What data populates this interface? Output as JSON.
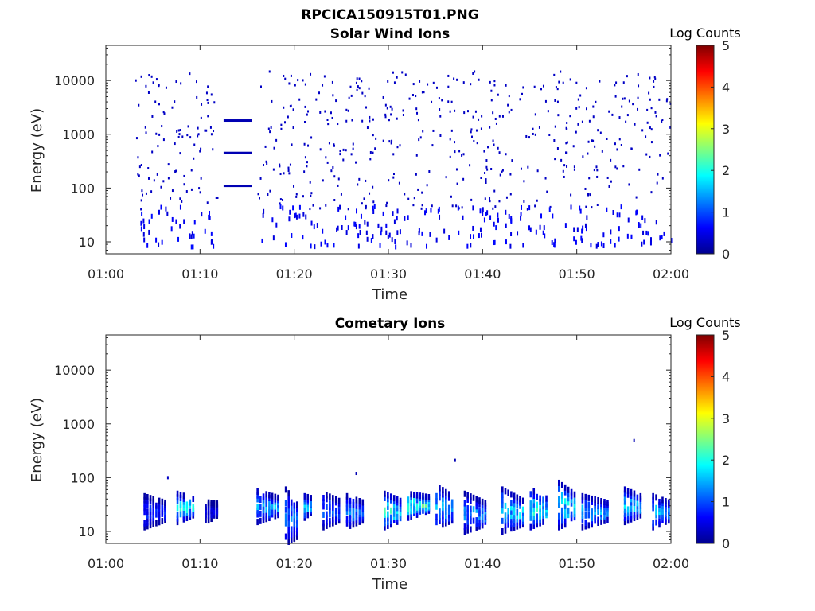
{
  "figure_title": "RPCICA150915T01.PNG",
  "chart_data": [
    {
      "type": "heatmap",
      "title": "Solar Wind Ions",
      "xlabel": "Time",
      "ylabel": "Energy (eV)",
      "x_ticks": [
        "01:00",
        "01:10",
        "01:20",
        "01:30",
        "01:40",
        "01:50",
        "02:00"
      ],
      "x_range": [
        "01:00",
        "02:00"
      ],
      "y_scale": "log",
      "y_ticks": [
        "10",
        "100",
        "1000",
        "10000"
      ],
      "ylim": [
        6,
        45000
      ],
      "colorbar": {
        "label": "Log Counts",
        "min": 0,
        "max": 5,
        "ticks": [
          "0",
          "1",
          "2",
          "3",
          "4",
          "5"
        ],
        "colormap": "jet"
      },
      "features": [
        {
          "kind": "scatter-noise",
          "time": [
            "01:03",
            "02:00"
          ],
          "energy_eV": [
            40,
            15000
          ],
          "log_counts": 0.3
        },
        {
          "kind": "band",
          "time": [
            "01:12.5",
            "01:15.5"
          ],
          "energy_eV": 1800,
          "log_counts": 0.2
        },
        {
          "kind": "band",
          "time": [
            "01:12.5",
            "01:15.5"
          ],
          "energy_eV": 450,
          "log_counts": 0.2
        },
        {
          "kind": "band",
          "time": [
            "01:12.5",
            "01:15.5"
          ],
          "energy_eV": 110,
          "log_counts": 0.2
        },
        {
          "kind": "low-energy-bursts",
          "energy_eV": [
            8,
            45
          ],
          "log_counts": 0.4
        }
      ]
    },
    {
      "type": "heatmap",
      "title": "Cometary Ions",
      "xlabel": "Time",
      "ylabel": "Energy (eV)",
      "x_ticks": [
        "01:00",
        "01:10",
        "01:20",
        "01:30",
        "01:40",
        "01:50",
        "02:00"
      ],
      "x_range": [
        "01:00",
        "02:00"
      ],
      "y_scale": "log",
      "y_ticks": [
        "10",
        "100",
        "1000",
        "10000"
      ],
      "ylim": [
        6,
        45000
      ],
      "colorbar": {
        "label": "Log Counts",
        "min": 0,
        "max": 5,
        "ticks": [
          "0",
          "1",
          "2",
          "3",
          "4",
          "5"
        ],
        "colormap": "jet"
      },
      "bursts": [
        {
          "start": "01:04.0",
          "end": "01:06.5",
          "energy_eV": [
            12,
            45
          ],
          "peak_log_counts": 1.0
        },
        {
          "start": "01:07.5",
          "end": "01:09.5",
          "energy_eV": [
            15,
            50
          ],
          "peak_log_counts": 2.2
        },
        {
          "start": "01:10.5",
          "end": "01:12.0",
          "energy_eV": [
            15,
            35
          ],
          "peak_log_counts": 0.6
        },
        {
          "start": "01:16.0",
          "end": "01:18.5",
          "energy_eV": [
            15,
            55
          ],
          "peak_log_counts": 1.8
        },
        {
          "start": "01:19.0",
          "end": "01:20.5",
          "energy_eV": [
            6,
            60
          ],
          "peak_log_counts": 1.4
        },
        {
          "start": "01:21.0",
          "end": "01:22.0",
          "energy_eV": [
            18,
            45
          ],
          "peak_log_counts": 2.0
        },
        {
          "start": "01:23.0",
          "end": "01:25.0",
          "energy_eV": [
            12,
            50
          ],
          "peak_log_counts": 1.2
        },
        {
          "start": "01:25.5",
          "end": "01:27.5",
          "energy_eV": [
            12,
            45
          ],
          "peak_log_counts": 1.5
        },
        {
          "start": "01:29.5",
          "end": "01:31.5",
          "energy_eV": [
            12,
            50
          ],
          "peak_log_counts": 2.3
        },
        {
          "start": "01:32.0",
          "end": "01:34.5",
          "energy_eV": [
            18,
            50
          ],
          "peak_log_counts": 2.6
        },
        {
          "start": "01:35.0",
          "end": "01:37.0",
          "energy_eV": [
            12,
            70
          ],
          "peak_log_counts": 1.8
        },
        {
          "start": "01:38.0",
          "end": "01:40.5",
          "energy_eV": [
            10,
            50
          ],
          "peak_log_counts": 1.6
        },
        {
          "start": "01:42.0",
          "end": "01:44.5",
          "energy_eV": [
            10,
            60
          ],
          "peak_log_counts": 2.0
        },
        {
          "start": "01:45.0",
          "end": "01:47.0",
          "energy_eV": [
            12,
            60
          ],
          "peak_log_counts": 2.3
        },
        {
          "start": "01:48.0",
          "end": "01:50.0",
          "energy_eV": [
            12,
            80
          ],
          "peak_log_counts": 2.1
        },
        {
          "start": "01:50.5",
          "end": "01:53.5",
          "energy_eV": [
            12,
            45
          ],
          "peak_log_counts": 1.8
        },
        {
          "start": "01:55.0",
          "end": "01:57.0",
          "energy_eV": [
            15,
            60
          ],
          "peak_log_counts": 2.0
        },
        {
          "start": "01:58.0",
          "end": "02:00.0",
          "energy_eV": [
            12,
            45
          ],
          "peak_log_counts": 1.8
        }
      ],
      "isolated_points": [
        {
          "time": "01:37.0",
          "energy_eV": 210,
          "log_counts": 0.2
        },
        {
          "time": "01:56.0",
          "energy_eV": 490,
          "log_counts": 0.2
        },
        {
          "time": "01:06.5",
          "energy_eV": 100,
          "log_counts": 0.3
        },
        {
          "time": "01:26.5",
          "energy_eV": 120,
          "log_counts": 0.2
        }
      ]
    }
  ]
}
